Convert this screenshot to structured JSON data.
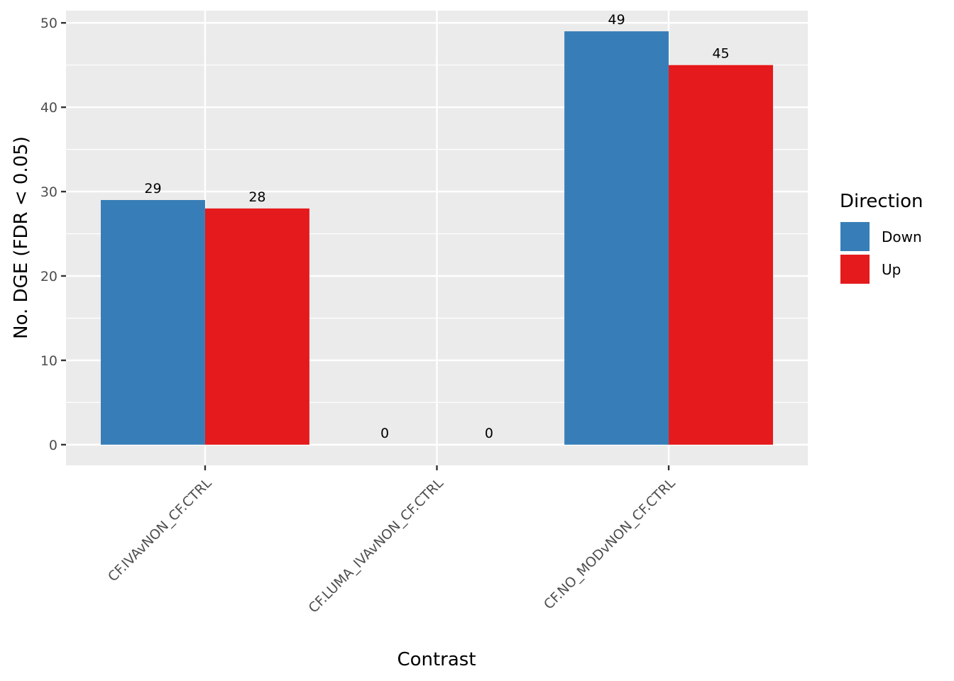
{
  "chart_data": {
    "type": "bar",
    "title": "",
    "xlabel": "Contrast",
    "ylabel": "No. DGE (FDR < 0.05)",
    "categories": [
      "CF.IVAvNON_CF.CTRL",
      "CF.LUMA_IVAvNON_CF.CTRL",
      "CF.NO_MODvNON_CF.CTRL"
    ],
    "series": [
      {
        "name": "Down",
        "color": "#377EB8",
        "values": [
          29,
          0,
          49
        ]
      },
      {
        "name": "Up",
        "color": "#E41A1C",
        "values": [
          28,
          0,
          45
        ]
      }
    ],
    "ylim": [
      -2.45,
      51.45
    ],
    "yticks": [
      0,
      10,
      20,
      30,
      40,
      50
    ],
    "grid": true,
    "legend": {
      "title": "Direction",
      "placement": "right"
    },
    "panel_background": "#EBEBEB"
  }
}
